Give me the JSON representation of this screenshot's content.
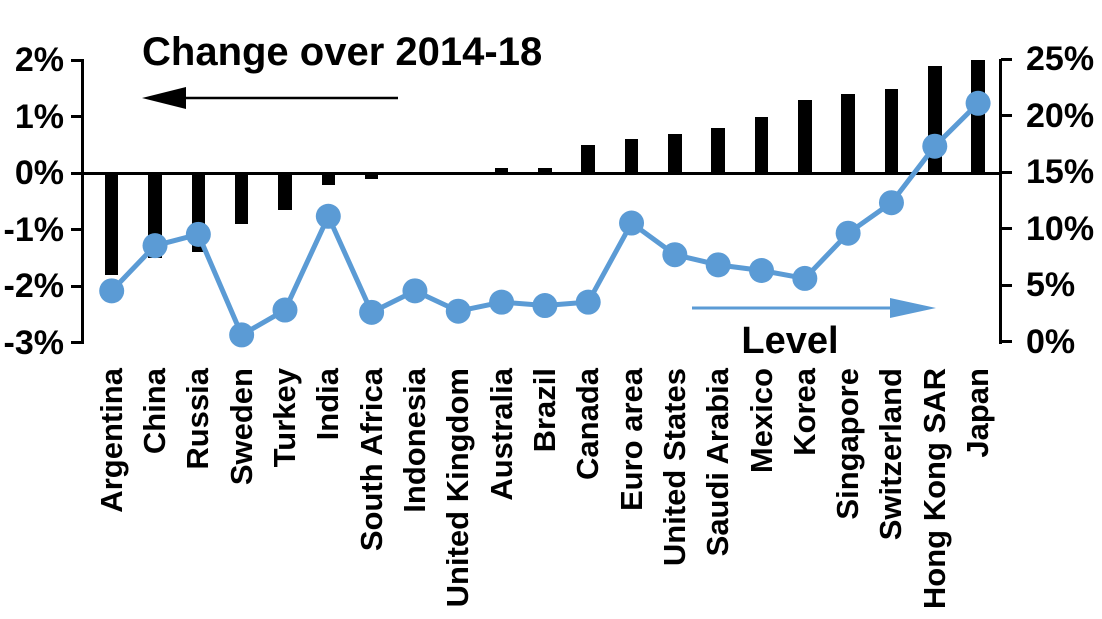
{
  "chart_data": {
    "type": "bar+line dual-axis combo",
    "title": "Change over 2014-18",
    "line_label": "Level",
    "background_color": "#ffffff",
    "categories": [
      "Argentina",
      "China",
      "Russia",
      "Sweden",
      "Turkey",
      "India",
      "South Africa",
      "Indonesia",
      "United Kingdom",
      "Australia",
      "Brazil",
      "Canada",
      "Euro area",
      "United States",
      "Saudi Arabia",
      "Mexico",
      "Korea",
      "Singapore",
      "Switzerland",
      "Hong Kong SAR",
      "Japan"
    ],
    "series": [
      {
        "name": "Change over 2014-18",
        "type": "bar",
        "axis": "left",
        "color": "#000000",
        "unit": "%",
        "values": [
          -1.8,
          -1.5,
          -1.4,
          -0.9,
          -0.65,
          -0.2,
          -0.1,
          0.0,
          0.0,
          0.1,
          0.1,
          0.5,
          0.6,
          0.7,
          0.8,
          1.0,
          1.3,
          1.4,
          1.5,
          1.9,
          2.0
        ]
      },
      {
        "name": "Level",
        "type": "line",
        "axis": "right",
        "color": "#5b9bd5",
        "unit": "%",
        "values": [
          4.5,
          8.5,
          9.5,
          0.6,
          2.8,
          11.1,
          2.6,
          4.5,
          2.7,
          3.5,
          3.2,
          3.5,
          10.5,
          7.7,
          6.8,
          6.3,
          5.6,
          9.6,
          12.3,
          17.3,
          21.1
        ]
      }
    ],
    "left_axis": {
      "tick_labels": [
        "2%",
        "1%",
        "0%",
        "-1%",
        "-2%",
        "-3%"
      ],
      "tick_values": [
        2,
        1,
        0,
        -1,
        -2,
        -3
      ],
      "min": -3,
      "max": 2
    },
    "right_axis": {
      "tick_labels": [
        "25%",
        "20%",
        "15%",
        "10%",
        "5%",
        "0%"
      ],
      "tick_values": [
        25,
        20,
        15,
        10,
        5,
        0
      ],
      "min": 0,
      "max": 25
    },
    "annotations": {
      "change_arrow_direction": "left",
      "level_arrow_direction": "right",
      "change_arrow_color": "#000000",
      "level_arrow_color": "#5b9bd5"
    },
    "grid": "off",
    "legend": "arrows pointing to respective axes"
  }
}
